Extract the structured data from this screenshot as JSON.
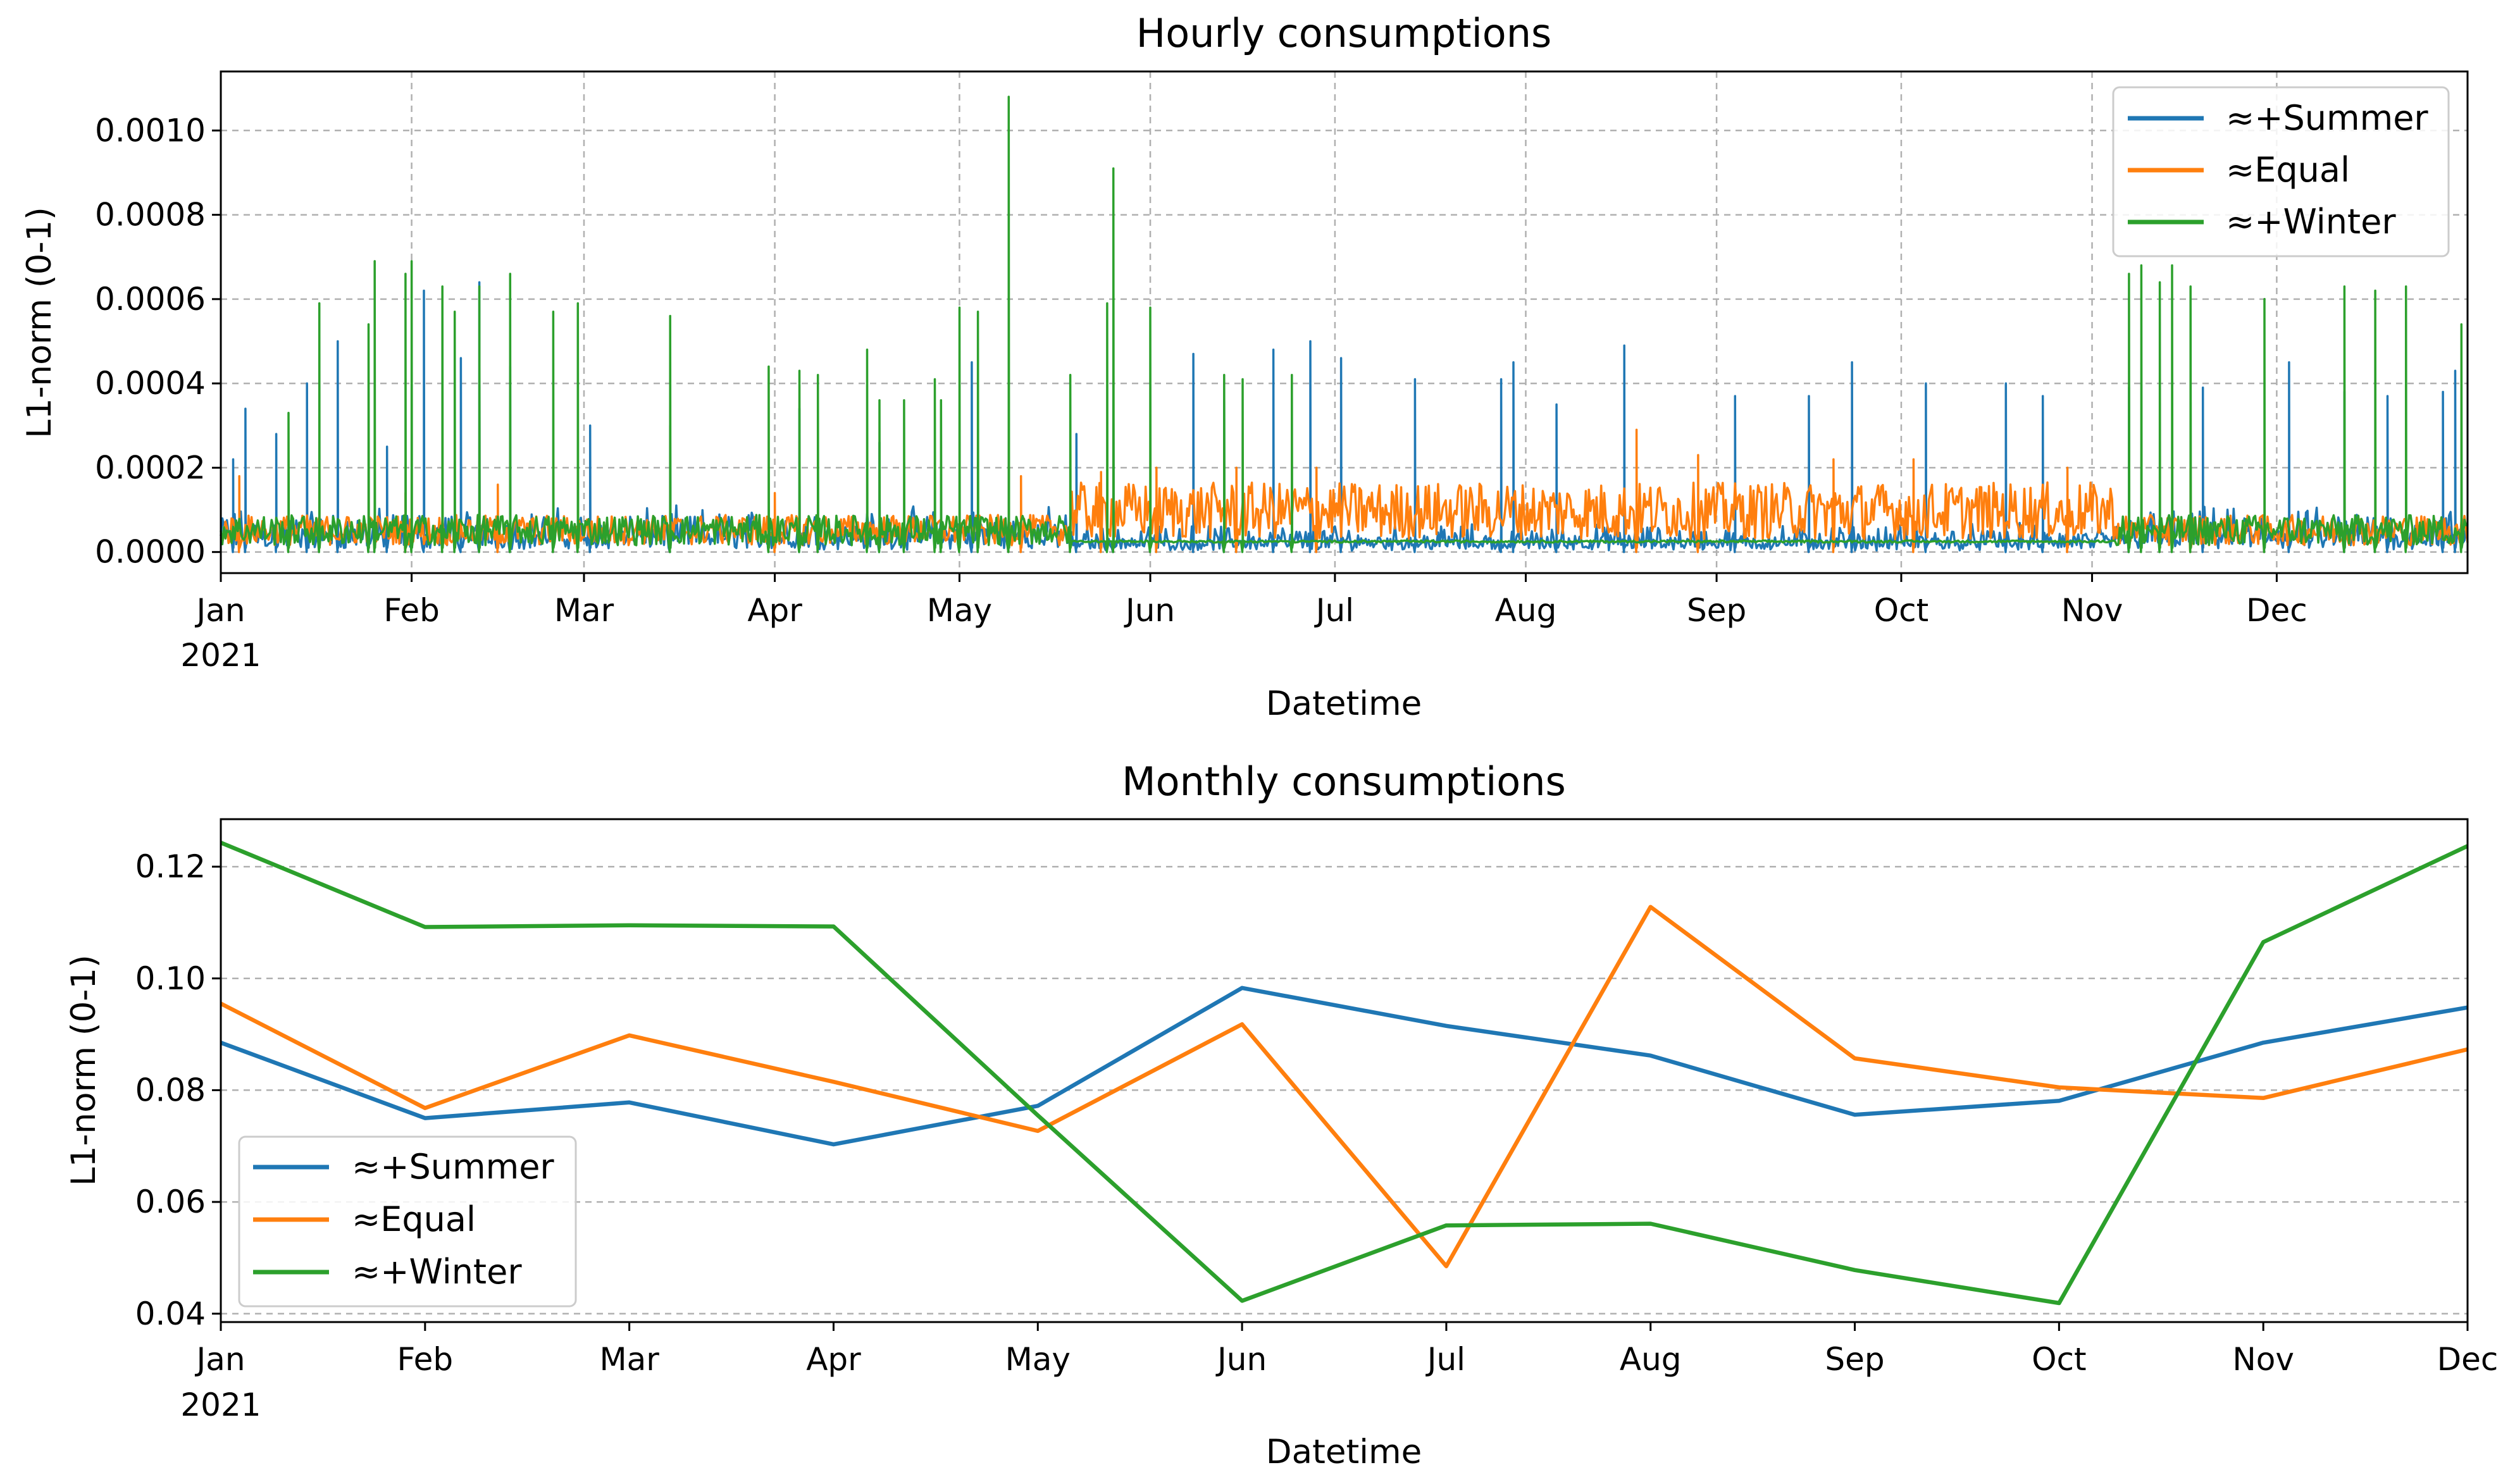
{
  "colors": {
    "summer": "#1f77b4",
    "equal": "#ff7f0e",
    "winter": "#2ca02c"
  },
  "legend": [
    "≈+Summer",
    "≈Equal",
    "≈+Winter"
  ],
  "chart_data": [
    {
      "type": "line",
      "title": "Hourly consumptions",
      "xlabel": "Datetime",
      "ylabel": "L1-norm (0-1)",
      "x_ticks": [
        "Jan",
        "Feb",
        "Mar",
        "Apr",
        "May",
        "Jun",
        "Jul",
        "Aug",
        "Sep",
        "Oct",
        "Nov",
        "Dec"
      ],
      "x_year_label": "2021",
      "x_range_days": [
        0,
        365
      ],
      "ylim": [
        -5e-05,
        0.00114
      ],
      "y_ticks": [
        "0.0000",
        "0.0002",
        "0.0004",
        "0.0006",
        "0.0008",
        "0.0010"
      ],
      "y_tick_values": [
        0,
        0.0002,
        0.0004,
        0.0006,
        0.0008,
        0.001
      ],
      "grid": true,
      "legend_position": "upper right",
      "series_note": "hourly resolution (8760 points per series); representative peaks listed, day of year -> value",
      "series": [
        {
          "name": "≈+Summer",
          "base": 8e-05,
          "peaks": [
            [
              2,
              0.00022
            ],
            [
              4,
              0.00034
            ],
            [
              9,
              0.00028
            ],
            [
              14,
              0.0004
            ],
            [
              19,
              0.0005
            ],
            [
              27,
              0.00025
            ],
            [
              33,
              0.00062
            ],
            [
              39,
              0.00046
            ],
            [
              42,
              0.00064
            ],
            [
              47,
              0.00044
            ],
            [
              60,
              0.0003
            ],
            [
              73,
              0.0003
            ],
            [
              94,
              0.00034
            ],
            [
              107,
              0.00026
            ],
            [
              122,
              0.00045
            ],
            [
              139,
              0.00028
            ],
            [
              145,
              0.00036
            ],
            [
              158,
              0.00047
            ],
            [
              163,
              0.00036
            ],
            [
              171,
              0.00048
            ],
            [
              177,
              0.0005
            ],
            [
              182,
              0.00046
            ],
            [
              194,
              0.00041
            ],
            [
              208,
              0.00041
            ],
            [
              210,
              0.00045
            ],
            [
              217,
              0.00035
            ],
            [
              228,
              0.00049
            ],
            [
              246,
              0.00037
            ],
            [
              258,
              0.00037
            ],
            [
              265,
              0.00045
            ],
            [
              277,
              0.0004
            ],
            [
              290,
              0.0004
            ],
            [
              296,
              0.00037
            ],
            [
              310,
              0.00039
            ],
            [
              322,
              0.00039
            ],
            [
              336,
              0.00045
            ],
            [
              345,
              0.00038
            ],
            [
              352,
              0.00037
            ],
            [
              361,
              0.00038
            ],
            [
              363,
              0.00043
            ]
          ]
        },
        {
          "name": "≈Equal",
          "base": 8e-05,
          "summer_base": 0.00015,
          "peaks": [
            [
              3,
              0.00018
            ],
            [
              30,
              0.00014
            ],
            [
              45,
              0.00016
            ],
            [
              90,
              0.00014
            ],
            [
              130,
              0.00018
            ],
            [
              143,
              0.00019
            ],
            [
              152,
              0.0002
            ],
            [
              165,
              0.0002
            ],
            [
              178,
              0.0002
            ],
            [
              230,
              0.00029
            ],
            [
              240,
              0.00023
            ],
            [
              262,
              0.00022
            ],
            [
              275,
              0.00022
            ],
            [
              300,
              0.0002
            ],
            [
              320,
              0.0002
            ]
          ]
        },
        {
          "name": "≈+Winter",
          "base": 8e-05,
          "summer_base": 2.5e-05,
          "peaks": [
            [
              11,
              0.00033
            ],
            [
              16,
              0.00059
            ],
            [
              24,
              0.00054
            ],
            [
              25,
              0.00069
            ],
            [
              30,
              0.00066
            ],
            [
              31,
              0.00069
            ],
            [
              36,
              0.00063
            ],
            [
              38,
              0.00057
            ],
            [
              42,
              0.00063
            ],
            [
              47,
              0.00066
            ],
            [
              54,
              0.00057
            ],
            [
              58,
              0.00059
            ],
            [
              73,
              0.00056
            ],
            [
              89,
              0.00044
            ],
            [
              94,
              0.00043
            ],
            [
              97,
              0.00042
            ],
            [
              105,
              0.00048
            ],
            [
              107,
              0.00036
            ],
            [
              111,
              0.00036
            ],
            [
              116,
              0.00041
            ],
            [
              117,
              0.00036
            ],
            [
              120,
              0.00058
            ],
            [
              123,
              0.00057
            ],
            [
              128,
              0.00108
            ],
            [
              138,
              0.00042
            ],
            [
              144,
              0.00059
            ],
            [
              145,
              0.00091
            ],
            [
              151,
              0.00058
            ],
            [
              163,
              0.00042
            ],
            [
              166,
              0.00041
            ],
            [
              174,
              0.00042
            ],
            [
              310,
              0.00066
            ],
            [
              312,
              0.00068
            ],
            [
              315,
              0.00064
            ],
            [
              317,
              0.00068
            ],
            [
              320,
              0.00063
            ],
            [
              332,
              0.0006
            ],
            [
              345,
              0.00063
            ],
            [
              350,
              0.00062
            ],
            [
              355,
              0.00063
            ],
            [
              364,
              0.00054
            ]
          ]
        }
      ]
    },
    {
      "type": "line",
      "title": "Monthly consumptions",
      "xlabel": "Datetime",
      "ylabel": "L1-norm (0-1)",
      "categories": [
        "Jan",
        "Feb",
        "Mar",
        "Apr",
        "May",
        "Jun",
        "Jul",
        "Aug",
        "Sep",
        "Oct",
        "Nov",
        "Dec"
      ],
      "x_year_label": "2021",
      "ylim": [
        0.0385,
        0.1285
      ],
      "y_ticks": [
        "0.04",
        "0.06",
        "0.08",
        "0.10",
        "0.12"
      ],
      "y_tick_values": [
        0.04,
        0.06,
        0.08,
        0.1,
        0.12
      ],
      "grid": true,
      "legend_position": "lower left",
      "series": [
        {
          "name": "≈+Summer",
          "values": [
            0.0885,
            0.075,
            0.0778,
            0.0703,
            0.0772,
            0.0983,
            0.0915,
            0.0862,
            0.0756,
            0.0781,
            0.0885,
            0.0948
          ]
        },
        {
          "name": "≈Equal",
          "values": [
            0.0955,
            0.0768,
            0.0898,
            0.0815,
            0.0727,
            0.0918,
            0.0485,
            0.1128,
            0.0857,
            0.0805,
            0.0786,
            0.0873
          ]
        },
        {
          "name": "≈+Winter",
          "values": [
            0.1243,
            0.1092,
            0.1095,
            0.1093,
            0.0755,
            0.0423,
            0.0558,
            0.0561,
            0.0478,
            0.0419,
            0.1065,
            0.1237
          ]
        }
      ]
    }
  ]
}
